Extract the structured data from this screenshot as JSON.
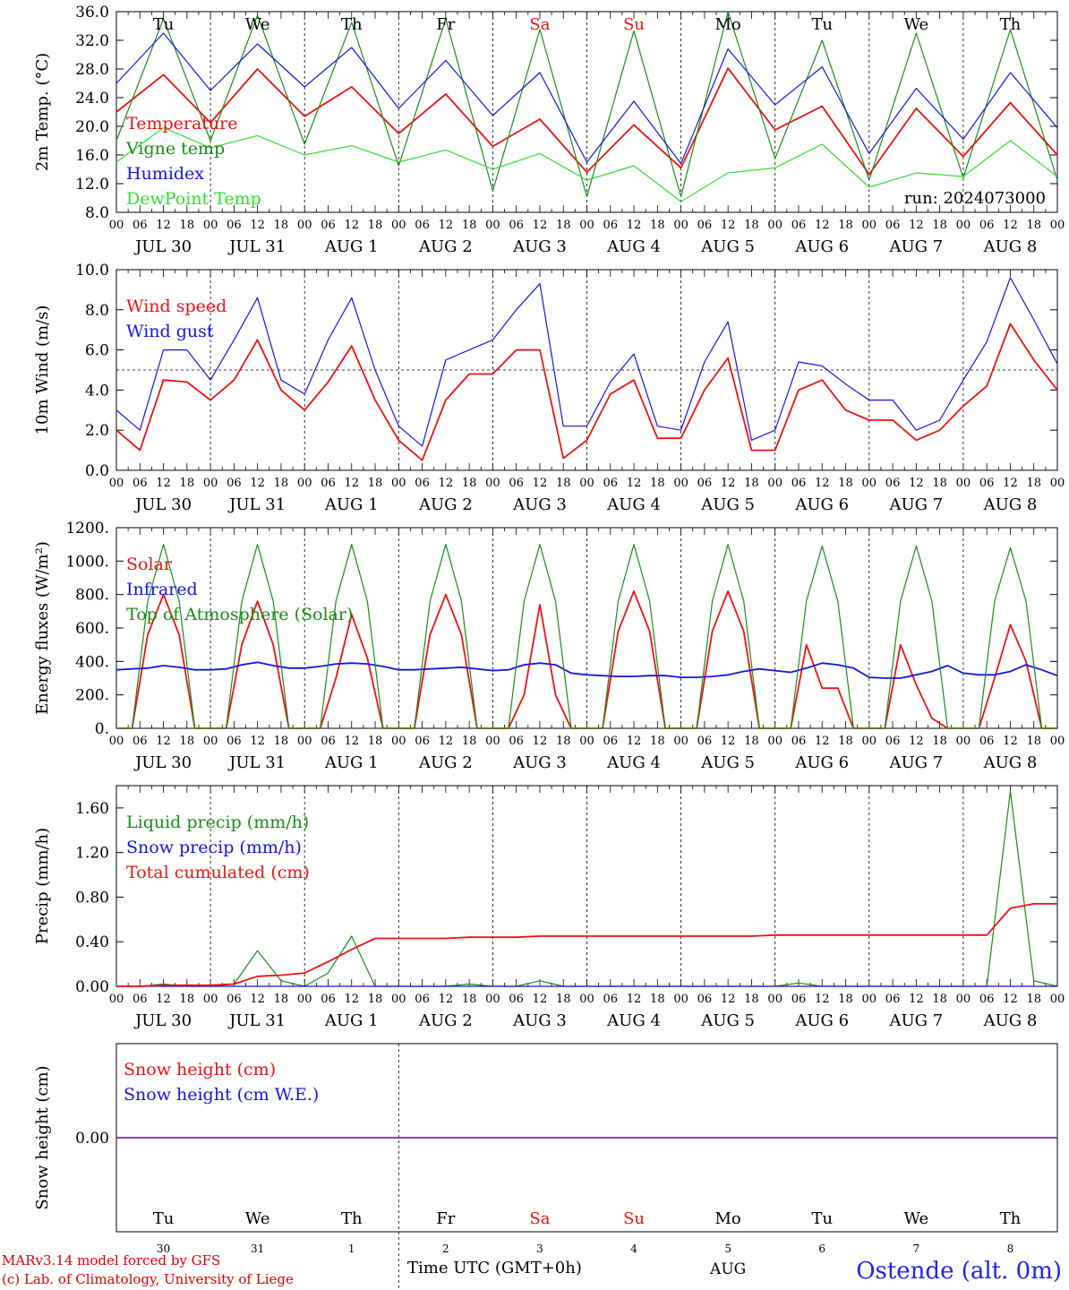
{
  "run_label": "run: 2024073000",
  "model_credit": "MARv3.14 model forced by GFS",
  "lab_credit": "(c) Lab. of Climatology, University of Liege",
  "station": "Ostende (alt. 0m)",
  "x_title": "Time UTC (GMT+0h)",
  "days": [
    {
      "abbr": "Tu",
      "date": "JUL 30",
      "num": "30",
      "weekend": false
    },
    {
      "abbr": "We",
      "date": "JUL 31",
      "num": "31",
      "weekend": false
    },
    {
      "abbr": "Th",
      "date": "AUG  1",
      "num": "1",
      "weekend": false
    },
    {
      "abbr": "Fr",
      "date": "AUG  2",
      "num": "2",
      "weekend": false
    },
    {
      "abbr": "Sa",
      "date": "AUG  3",
      "num": "3",
      "weekend": true
    },
    {
      "abbr": "Su",
      "date": "AUG  4",
      "num": "4",
      "weekend": true
    },
    {
      "abbr": "Mo",
      "date": "AUG  5",
      "num": "5",
      "weekend": false
    },
    {
      "abbr": "Tu",
      "date": "AUG  6",
      "num": "6",
      "weekend": false
    },
    {
      "abbr": "We",
      "date": "AUG  7",
      "num": "7",
      "weekend": false
    },
    {
      "abbr": "Th",
      "date": "AUG  8",
      "num": "8",
      "weekend": false
    }
  ],
  "hour_ticks": [
    "00",
    "06",
    "12",
    "18"
  ],
  "last_tick": "00",
  "month_bottom": "AUG",
  "colors": {
    "red": "#ee1111",
    "green": "#1a8a1a",
    "blue": "#1515dd",
    "light_green": "#33dd33",
    "purple": "#7a2a9a",
    "weekend": "#ee1111",
    "station": "#2222ee"
  },
  "chart_data": [
    {
      "type": "line",
      "id": "temp",
      "ylabel": "2m Temp. (°C)",
      "ylim": [
        8,
        36
      ],
      "yticks": [
        "8.0",
        "12.0",
        "16.0",
        "20.0",
        "24.0",
        "28.0",
        "32.0",
        "36.0"
      ],
      "x_hours": [
        0,
        12,
        24,
        36,
        48,
        60,
        72,
        84,
        96,
        108,
        120,
        132,
        144,
        156,
        168,
        180,
        192,
        204,
        216,
        228,
        240
      ],
      "series": [
        {
          "name": "Temperature",
          "color": "red",
          "values": [
            22,
            27.2,
            20.5,
            28,
            21.4,
            25.5,
            19,
            24.5,
            17.2,
            21,
            13.6,
            20.2,
            14.2,
            28.1,
            19.5,
            22.8,
            13.3,
            22.5,
            15.8,
            23.3,
            16
          ]
        },
        {
          "name": "Vigne temp",
          "color": "green",
          "values": [
            18,
            35,
            18,
            35.5,
            17.5,
            34.5,
            14.5,
            35,
            11,
            33.5,
            10.2,
            33.3,
            10.2,
            36,
            15.5,
            32,
            12.5,
            33,
            12.8,
            33.5,
            12.5
          ]
        },
        {
          "name": "Humidex",
          "color": "blue",
          "values": [
            26,
            33,
            25,
            31.5,
            25.5,
            31,
            22.5,
            29.2,
            21.5,
            27.5,
            15,
            23.5,
            14.8,
            30.8,
            23,
            28.3,
            16.2,
            25.3,
            18.2,
            27.5,
            19.8
          ]
        },
        {
          "name": "DewPoint Temp",
          "color": "light_green",
          "values": [
            15,
            19.8,
            17,
            18.7,
            16,
            17.3,
            15,
            16.7,
            14,
            16.2,
            12.5,
            14.5,
            9.5,
            13.5,
            14.2,
            17.5,
            11.5,
            13.5,
            13,
            18,
            13
          ]
        }
      ]
    },
    {
      "type": "line",
      "id": "wind",
      "ylabel": "10m Wind (m/s)",
      "ylim": [
        0,
        10
      ],
      "yticks": [
        "0.0",
        "2.0",
        "4.0",
        "6.0",
        "8.0",
        "10.0"
      ],
      "ref_line": 5,
      "x_hours": [
        0,
        6,
        12,
        18,
        24,
        30,
        36,
        42,
        48,
        54,
        60,
        66,
        72,
        78,
        84,
        90,
        96,
        102,
        108,
        114,
        120,
        126,
        132,
        138,
        144,
        150,
        156,
        162,
        168,
        174,
        180,
        186,
        192,
        198,
        204,
        210,
        216,
        222,
        228,
        234,
        240
      ],
      "series": [
        {
          "name": "Wind speed",
          "color": "red",
          "values": [
            2,
            1,
            4.5,
            4.4,
            3.5,
            4.5,
            6.5,
            4,
            3,
            4.4,
            6.2,
            3.5,
            1.5,
            0.5,
            3.5,
            4.8,
            4.8,
            6,
            6,
            0.6,
            1.5,
            3.8,
            4.5,
            1.6,
            1.6,
            4,
            5.6,
            1,
            1,
            4,
            4.5,
            3,
            2.5,
            2.5,
            1.5,
            2,
            3.2,
            4.2,
            7.3,
            5.5,
            4
          ]
        },
        {
          "name": "Wind gust",
          "color": "blue",
          "values": [
            3,
            2,
            6,
            6,
            4.5,
            6.5,
            8.6,
            4.5,
            3.8,
            6.5,
            8.6,
            5,
            2.2,
            1.2,
            5.5,
            6,
            6.5,
            8,
            9.3,
            2.2,
            2.2,
            4.4,
            5.8,
            2.2,
            2,
            5.4,
            7.4,
            1.5,
            2,
            5.4,
            5.2,
            4.3,
            3.5,
            3.5,
            2,
            2.5,
            4.5,
            6.4,
            9.6,
            7.5,
            5.3
          ]
        }
      ]
    },
    {
      "type": "line",
      "id": "energy",
      "ylabel": "Energy fluxes (W/m²)",
      "ylim": [
        0,
        1200
      ],
      "yticks": [
        "0.",
        "200.",
        "400.",
        "600.",
        "800.",
        "1000.",
        "1200."
      ],
      "x_hours": [
        0,
        4,
        8,
        12,
        16,
        20,
        24,
        28,
        32,
        36,
        40,
        44,
        48,
        52,
        56,
        60,
        64,
        68,
        72,
        76,
        80,
        84,
        88,
        92,
        96,
        100,
        104,
        108,
        112,
        116,
        120,
        124,
        128,
        132,
        136,
        140,
        144,
        148,
        152,
        156,
        160,
        164,
        168,
        172,
        176,
        180,
        184,
        188,
        192,
        196,
        200,
        204,
        208,
        212,
        216,
        220,
        224,
        228,
        232,
        236,
        240
      ],
      "series": [
        {
          "name": "Solar",
          "color": "red",
          "values": [
            0,
            0,
            560,
            800,
            560,
            0,
            0,
            0,
            500,
            760,
            500,
            0,
            0,
            0,
            300,
            680,
            420,
            0,
            0,
            0,
            560,
            800,
            560,
            0,
            0,
            0,
            200,
            740,
            200,
            0,
            0,
            0,
            580,
            820,
            580,
            0,
            0,
            0,
            580,
            820,
            580,
            0,
            0,
            0,
            500,
            240,
            240,
            0,
            0,
            0,
            500,
            260,
            60,
            0,
            0,
            0,
            300,
            620,
            400,
            0,
            0
          ]
        },
        {
          "name": "Infrared",
          "color": "blue",
          "values": [
            350,
            355,
            360,
            375,
            365,
            350,
            350,
            355,
            380,
            395,
            375,
            360,
            360,
            370,
            385,
            390,
            385,
            370,
            350,
            350,
            355,
            360,
            365,
            355,
            345,
            350,
            380,
            390,
            380,
            330,
            320,
            315,
            310,
            310,
            315,
            315,
            305,
            305,
            310,
            320,
            340,
            355,
            345,
            335,
            360,
            390,
            380,
            360,
            305,
            300,
            300,
            320,
            340,
            375,
            330,
            320,
            320,
            340,
            380,
            350,
            315
          ]
        },
        {
          "name": "Top of Atmosphere (Solar)",
          "color": "green",
          "values": [
            0,
            0,
            760,
            1100,
            760,
            0,
            0,
            0,
            760,
            1100,
            760,
            0,
            0,
            0,
            760,
            1100,
            760,
            0,
            0,
            0,
            760,
            1100,
            760,
            0,
            0,
            0,
            760,
            1100,
            760,
            0,
            0,
            0,
            760,
            1100,
            760,
            0,
            0,
            0,
            760,
            1100,
            760,
            0,
            0,
            0,
            760,
            1090,
            760,
            0,
            0,
            0,
            760,
            1090,
            760,
            0,
            0,
            0,
            760,
            1080,
            760,
            0,
            0
          ]
        }
      ]
    },
    {
      "type": "line",
      "id": "precip",
      "ylabel": "Precip (mm/h)",
      "ylim": [
        0,
        1.8
      ],
      "yticks": [
        "0.00",
        "0.40",
        "0.80",
        "1.20",
        "1.60"
      ],
      "x_hours": [
        0,
        6,
        12,
        18,
        24,
        30,
        36,
        42,
        48,
        54,
        60,
        66,
        72,
        78,
        84,
        90,
        96,
        102,
        108,
        114,
        120,
        126,
        132,
        138,
        144,
        150,
        156,
        162,
        168,
        174,
        180,
        186,
        192,
        198,
        204,
        210,
        216,
        222,
        228,
        234,
        240
      ],
      "series": [
        {
          "name": "Liquid precip (mm/h)",
          "color": "green",
          "values": [
            0,
            0,
            0.02,
            0,
            0,
            0.02,
            0.32,
            0.05,
            0,
            0.12,
            0.45,
            0,
            0,
            0,
            0,
            0.02,
            0,
            0,
            0.05,
            0,
            0,
            0,
            0,
            0,
            0,
            0,
            0,
            0,
            0,
            0.03,
            0,
            0,
            0,
            0,
            0,
            0,
            0,
            0,
            1.75,
            0.05,
            0
          ]
        },
        {
          "name": "Snow precip (mm/h)",
          "color": "blue",
          "values": [
            0,
            0,
            0,
            0,
            0,
            0,
            0,
            0,
            0,
            0,
            0,
            0,
            0,
            0,
            0,
            0,
            0,
            0,
            0,
            0,
            0,
            0,
            0,
            0,
            0,
            0,
            0,
            0,
            0,
            0,
            0,
            0,
            0,
            0,
            0,
            0,
            0,
            0,
            0,
            0,
            0
          ]
        },
        {
          "name": "Total cumulated (cm)",
          "color": "red",
          "values": [
            0,
            0,
            0.01,
            0.01,
            0.01,
            0.02,
            0.09,
            0.1,
            0.12,
            0.22,
            0.33,
            0.43,
            0.43,
            0.43,
            0.43,
            0.44,
            0.44,
            0.44,
            0.45,
            0.45,
            0.45,
            0.45,
            0.45,
            0.45,
            0.45,
            0.45,
            0.45,
            0.45,
            0.46,
            0.46,
            0.46,
            0.46,
            0.46,
            0.46,
            0.46,
            0.46,
            0.46,
            0.46,
            0.7,
            0.74,
            0.74
          ]
        }
      ]
    },
    {
      "type": "line",
      "id": "snow",
      "ylabel": "Snow height (cm)",
      "ylim": [
        -1,
        1
      ],
      "yticks": [
        "0.00"
      ],
      "x_hours": [
        0,
        240
      ],
      "series": [
        {
          "name": "Snow height (cm)",
          "color": "red",
          "values": [
            0,
            0
          ]
        },
        {
          "name": "Snow height (cm W.E.)",
          "color": "blue",
          "values": [
            0,
            0
          ]
        }
      ]
    }
  ]
}
